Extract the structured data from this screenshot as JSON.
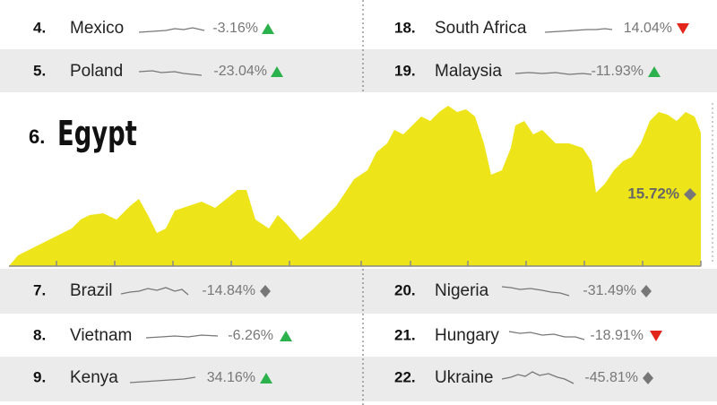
{
  "rows": [
    {
      "rank": "4.",
      "country": "Mexico",
      "change": "-3.16%"
    },
    {
      "rank": "5.",
      "country": "Poland",
      "change": "-23.04%"
    },
    {
      "rank": "18.",
      "country": "South Africa",
      "change": "14.04%"
    },
    {
      "rank": "19.",
      "country": "Malaysia",
      "change": "-11.93%"
    },
    {
      "rank": "7.",
      "country": "Brazil",
      "change": "-14.84%"
    },
    {
      "rank": "8.",
      "country": "Vietnam",
      "change": "-6.26%"
    },
    {
      "rank": "9.",
      "country": "Kenya",
      "change": "34.16%"
    },
    {
      "rank": "20.",
      "country": "Nigeria",
      "change": "-31.49%"
    },
    {
      "rank": "21.",
      "country": "Hungary",
      "change": "-18.91%"
    },
    {
      "rank": "22.",
      "country": "Ukraine",
      "change": "-45.81%"
    }
  ],
  "featured": {
    "rank": "6.",
    "country": "Egypt",
    "change": "15.72%"
  }
}
